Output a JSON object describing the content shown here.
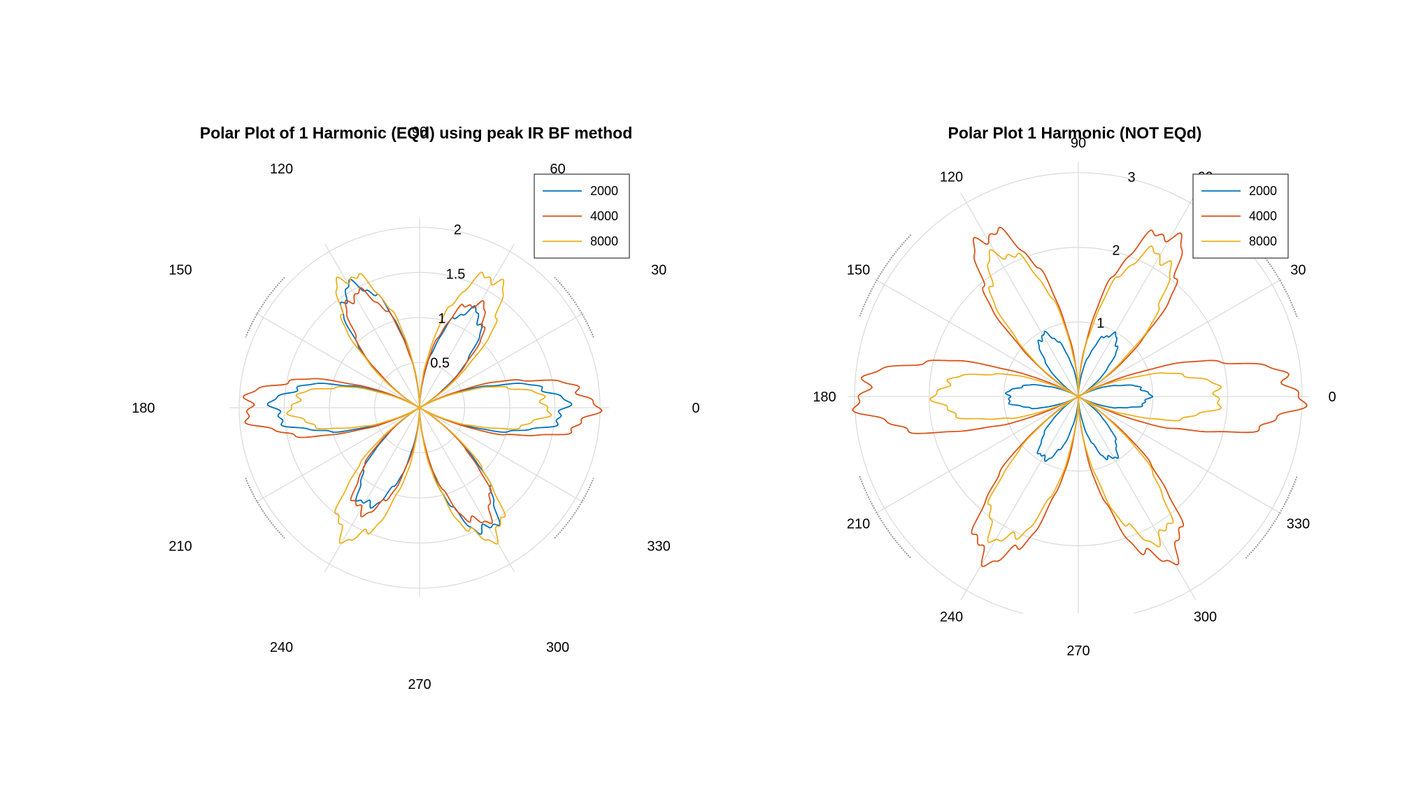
{
  "chart_data": [
    {
      "type": "polar",
      "title": "Polar Plot of 1 Harmonic (EQd) using peak IR BF method",
      "theta_ticks": [
        "0",
        "30",
        "60",
        "90",
        "120",
        "150",
        "180",
        "210",
        "240",
        "270",
        "300",
        "330"
      ],
      "r_ticks": [
        "0.5",
        "1",
        "1.5",
        "2"
      ],
      "rlim": [
        0,
        2
      ],
      "grid": true,
      "legend_position": "top-right",
      "series": [
        {
          "name": "2000",
          "color": "#0072BD",
          "petals": 6,
          "max_r": [
            1.62,
            1.23,
            1.55,
            1.62,
            1.23,
            1.55
          ]
        },
        {
          "name": "4000",
          "color": "#D95319",
          "petals": 6,
          "max_r": [
            1.93,
            1.32,
            1.45,
            1.93,
            1.32,
            1.45
          ]
        },
        {
          "name": "8000",
          "color": "#EDB120",
          "petals": 6,
          "max_r": [
            1.42,
            1.66,
            1.66,
            1.42,
            1.66,
            1.66
          ]
        }
      ]
    },
    {
      "type": "polar",
      "title": "Polar Plot 1 Harmonic (NOT EQd)",
      "theta_ticks": [
        "0",
        "30",
        "60",
        "90",
        "120",
        "150",
        "180",
        "210",
        "240",
        "270",
        "300",
        "330"
      ],
      "r_ticks": [
        "1",
        "2",
        "3"
      ],
      "rlim": [
        0,
        3
      ],
      "grid": true,
      "legend_position": "top-right",
      "series": [
        {
          "name": "2000",
          "color": "#0072BD",
          "petals": 6,
          "max_r": [
            0.95,
            0.95,
            0.95,
            0.95,
            0.95,
            0.95
          ]
        },
        {
          "name": "4000",
          "color": "#D95319",
          "petals": 6,
          "max_r": [
            2.95,
            2.5,
            2.5,
            2.95,
            2.5,
            2.5
          ]
        },
        {
          "name": "8000",
          "color": "#EDB120",
          "petals": 6,
          "max_r": [
            1.9,
            2.2,
            2.2,
            1.9,
            2.2,
            2.2
          ]
        }
      ]
    }
  ]
}
